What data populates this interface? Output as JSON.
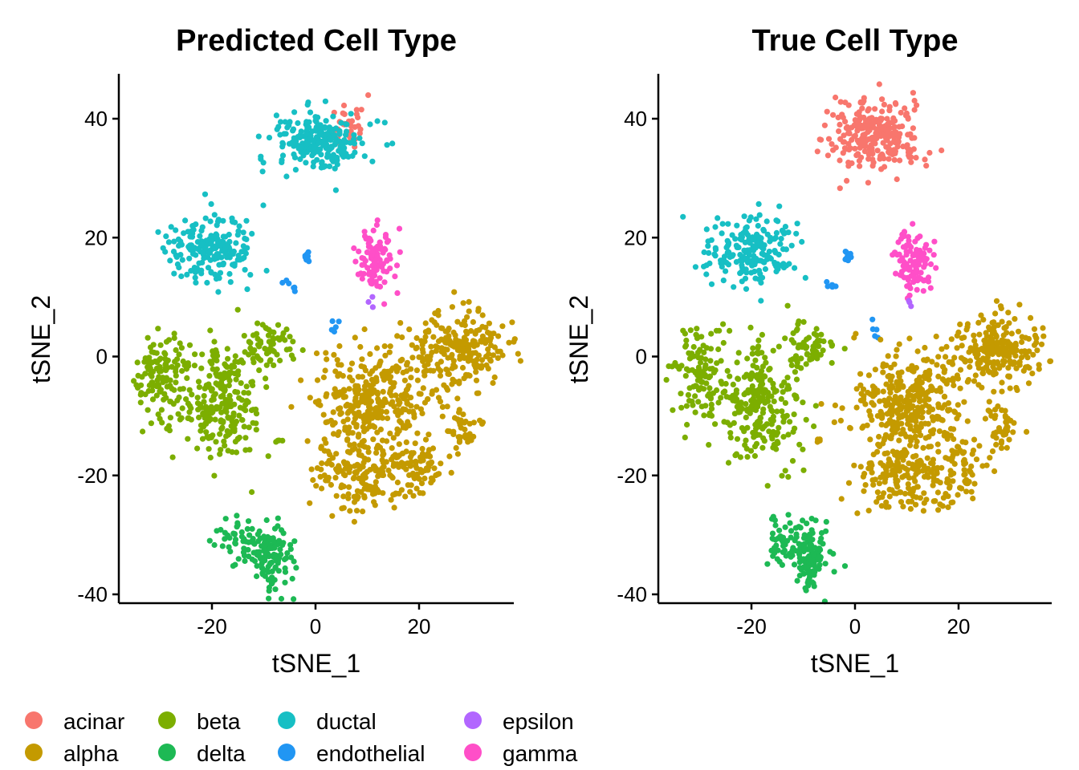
{
  "legend": {
    "entries": [
      {
        "label": "acinar",
        "color": "#F8766D"
      },
      {
        "label": "alpha",
        "color": "#C49A00"
      },
      {
        "label": "beta",
        "color": "#7CAE00"
      },
      {
        "label": "delta",
        "color": "#1DB954"
      },
      {
        "label": "ductal",
        "color": "#17BFC4"
      },
      {
        "label": "endothelial",
        "color": "#2196F3"
      },
      {
        "label": "epsilon",
        "color": "#B266FF"
      },
      {
        "label": "gamma",
        "color": "#FF4FC8"
      }
    ]
  },
  "chart_data": [
    {
      "type": "scatter",
      "title": "Predicted Cell Type",
      "xlabel": "tSNE_1",
      "ylabel": "tSNE_2",
      "xlim": [
        -38,
        38
      ],
      "ylim": [
        -42,
        48
      ],
      "xticks": [
        -20,
        0,
        20
      ],
      "yticks": [
        -40,
        -20,
        0,
        20,
        40
      ],
      "grid": false,
      "clusters": [
        {
          "name": "acinar",
          "cx": 6,
          "cy": 39,
          "sx": 1.8,
          "sy": 2.5,
          "n": 40,
          "seed": 11
        },
        {
          "name": "ductal",
          "cx": 1,
          "cy": 36,
          "sx": 4.5,
          "sy": 2.6,
          "n": 210,
          "seed": 12
        },
        {
          "name": "ductal",
          "cx": -20,
          "cy": 18,
          "sx": 4.5,
          "sy": 2.8,
          "n": 190,
          "seed": 13
        },
        {
          "name": "endothelial",
          "cx": -1.5,
          "cy": 16.7,
          "sx": 0.3,
          "sy": 0.5,
          "n": 10,
          "seed": 14
        },
        {
          "name": "endothelial",
          "cx": -4.5,
          "cy": 12,
          "sx": 0.6,
          "sy": 0.8,
          "n": 6,
          "seed": 15
        },
        {
          "name": "endothelial",
          "cx": 4,
          "cy": 5,
          "sx": 0.4,
          "sy": 1.0,
          "n": 5,
          "seed": 16
        },
        {
          "name": "gamma",
          "cx": 11.5,
          "cy": 16,
          "sx": 1.8,
          "sy": 2.6,
          "n": 100,
          "seed": 17
        },
        {
          "name": "epsilon",
          "cx": 10.5,
          "cy": 9,
          "sx": 0.4,
          "sy": 0.7,
          "n": 3,
          "seed": 18
        },
        {
          "name": "beta",
          "cx": -9,
          "cy": 2,
          "sx": 2.4,
          "sy": 1.8,
          "n": 60,
          "seed": 19
        },
        {
          "name": "beta",
          "cx": -30,
          "cy": -3,
          "sx": 2.6,
          "sy": 4.0,
          "n": 120,
          "seed": 20
        },
        {
          "name": "beta",
          "cx": -18,
          "cy": -8,
          "sx": 4.0,
          "sy": 4.8,
          "n": 240,
          "seed": 21
        },
        {
          "name": "beta",
          "cx": -7.5,
          "cy": -14.2,
          "sx": 0.5,
          "sy": 0.3,
          "n": 4,
          "seed": 22
        },
        {
          "name": "alpha",
          "cx": 27,
          "cy": 1,
          "sx": 5.0,
          "sy": 3.2,
          "n": 230,
          "seed": 23
        },
        {
          "name": "alpha",
          "cx": 10,
          "cy": -8,
          "sx": 5.5,
          "sy": 4.6,
          "n": 320,
          "seed": 24
        },
        {
          "name": "alpha",
          "cx": 10,
          "cy": -20,
          "sx": 5.0,
          "sy": 2.8,
          "n": 180,
          "seed": 25
        },
        {
          "name": "alpha",
          "cx": 21,
          "cy": -18,
          "sx": 2.0,
          "sy": 2.5,
          "n": 50,
          "seed": 26
        },
        {
          "name": "alpha",
          "cx": 28,
          "cy": -12,
          "sx": 1.6,
          "sy": 2.0,
          "n": 40,
          "seed": 27
        },
        {
          "name": "delta",
          "cx": -13,
          "cy": -31,
          "sx": 2.8,
          "sy": 2.0,
          "n": 60,
          "seed": 28
        },
        {
          "name": "delta",
          "cx": -8.5,
          "cy": -34,
          "sx": 1.8,
          "sy": 2.6,
          "n": 100,
          "seed": 29
        }
      ]
    },
    {
      "type": "scatter",
      "title": "True Cell Type",
      "xlabel": "tSNE_1",
      "ylabel": "tSNE_2",
      "xlim": [
        -38,
        38
      ],
      "ylim": [
        -42,
        48
      ],
      "xticks": [
        -20,
        0,
        20
      ],
      "yticks": [
        -40,
        -20,
        0,
        20,
        40
      ],
      "grid": false,
      "clusters": [
        {
          "name": "acinar",
          "cx": 3.5,
          "cy": 37,
          "sx": 4.8,
          "sy": 3.0,
          "n": 260,
          "seed": 31
        },
        {
          "name": "ductal",
          "cx": -20,
          "cy": 18,
          "sx": 4.5,
          "sy": 2.8,
          "n": 190,
          "seed": 33
        },
        {
          "name": "endothelial",
          "cx": -1.5,
          "cy": 16.7,
          "sx": 0.3,
          "sy": 0.5,
          "n": 10,
          "seed": 34
        },
        {
          "name": "endothelial",
          "cx": -4.5,
          "cy": 12,
          "sx": 0.6,
          "sy": 0.8,
          "n": 6,
          "seed": 35
        },
        {
          "name": "endothelial",
          "cx": 4,
          "cy": 5,
          "sx": 0.4,
          "sy": 1.0,
          "n": 5,
          "seed": 36
        },
        {
          "name": "gamma",
          "cx": 11.5,
          "cy": 16,
          "sx": 1.8,
          "sy": 2.6,
          "n": 100,
          "seed": 37
        },
        {
          "name": "epsilon",
          "cx": 10.5,
          "cy": 9,
          "sx": 0.4,
          "sy": 0.7,
          "n": 3,
          "seed": 38
        },
        {
          "name": "beta",
          "cx": -9,
          "cy": 2,
          "sx": 2.4,
          "sy": 1.8,
          "n": 60,
          "seed": 39
        },
        {
          "name": "beta",
          "cx": -30,
          "cy": -3,
          "sx": 2.6,
          "sy": 4.0,
          "n": 120,
          "seed": 40
        },
        {
          "name": "beta",
          "cx": -18,
          "cy": -8,
          "sx": 4.0,
          "sy": 4.8,
          "n": 240,
          "seed": 41
        },
        {
          "name": "alpha",
          "cx": 27,
          "cy": 1,
          "sx": 5.0,
          "sy": 3.2,
          "n": 230,
          "seed": 43
        },
        {
          "name": "alpha",
          "cx": 10,
          "cy": -8,
          "sx": 5.5,
          "sy": 4.6,
          "n": 320,
          "seed": 44
        },
        {
          "name": "alpha",
          "cx": 10,
          "cy": -20,
          "sx": 5.0,
          "sy": 2.8,
          "n": 180,
          "seed": 45
        },
        {
          "name": "alpha",
          "cx": 21,
          "cy": -18,
          "sx": 2.0,
          "sy": 2.5,
          "n": 50,
          "seed": 46
        },
        {
          "name": "alpha",
          "cx": 28,
          "cy": -12,
          "sx": 1.6,
          "sy": 2.0,
          "n": 40,
          "seed": 47
        },
        {
          "name": "alpha",
          "cx": -7.5,
          "cy": -14.2,
          "sx": 0.5,
          "sy": 0.3,
          "n": 4,
          "seed": 42
        },
        {
          "name": "delta",
          "cx": -13,
          "cy": -31,
          "sx": 2.8,
          "sy": 2.0,
          "n": 60,
          "seed": 48
        },
        {
          "name": "delta",
          "cx": -8.5,
          "cy": -34,
          "sx": 1.8,
          "sy": 2.6,
          "n": 100,
          "seed": 49
        }
      ]
    }
  ]
}
